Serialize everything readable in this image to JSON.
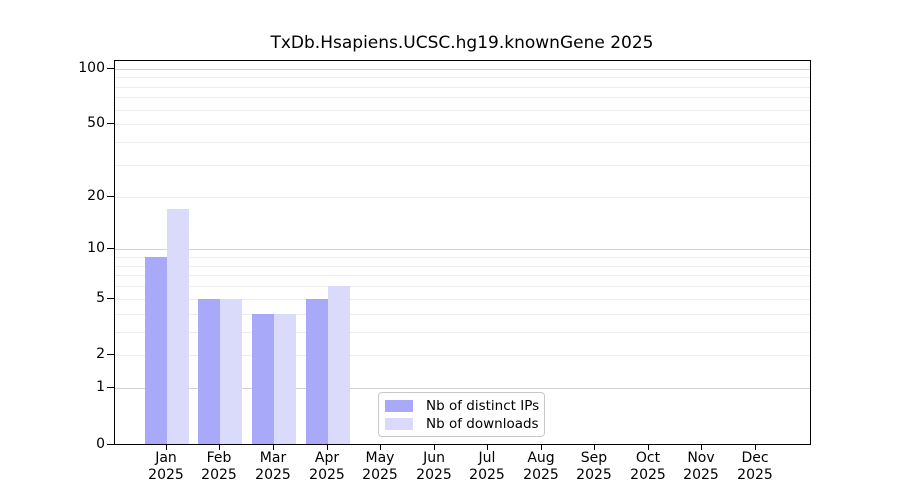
{
  "chart_data": {
    "type": "bar",
    "title": "TxDb.Hsapiens.UCSC.hg19.knownGene 2025",
    "year_label": "2025",
    "months": [
      "Jan",
      "Feb",
      "Mar",
      "Apr",
      "May",
      "Jun",
      "Jul",
      "Aug",
      "Sep",
      "Oct",
      "Nov",
      "Dec"
    ],
    "series": [
      {
        "name": "Nb of distinct IPs",
        "color": "#a9a9fa",
        "values": [
          9,
          5,
          4,
          5,
          0,
          0,
          0,
          0,
          0,
          0,
          0,
          0
        ]
      },
      {
        "name": "Nb of downloads",
        "color": "#dadafa",
        "values": [
          17,
          5,
          4,
          6,
          0,
          0,
          0,
          0,
          0,
          0,
          0,
          0
        ]
      }
    ],
    "yscale": "log1p",
    "ylim": [
      0,
      110
    ],
    "ytick_values": [
      0,
      1,
      2,
      5,
      10,
      20,
      50,
      100
    ],
    "ytick_labels": [
      "0",
      "1",
      "2",
      "5",
      "10",
      "20",
      "50",
      "100"
    ],
    "major_gridlines": [
      1,
      10,
      100
    ],
    "minor_gridlines": [
      2,
      3,
      4,
      5,
      6,
      7,
      8,
      9,
      20,
      30,
      40,
      50,
      60,
      70,
      80,
      90
    ],
    "grid_on": true,
    "legend": {
      "position": "lower-center",
      "items": [
        "Nb of distinct IPs",
        "Nb of downloads"
      ]
    },
    "colors": {
      "bar_distinct_ips": "#a9a9fa",
      "bar_downloads": "#dadafa",
      "minor_grid": "#ececec",
      "major_grid": "#d2d2d2",
      "axis": "#000000",
      "legend_border": "#c9c9c9"
    }
  }
}
